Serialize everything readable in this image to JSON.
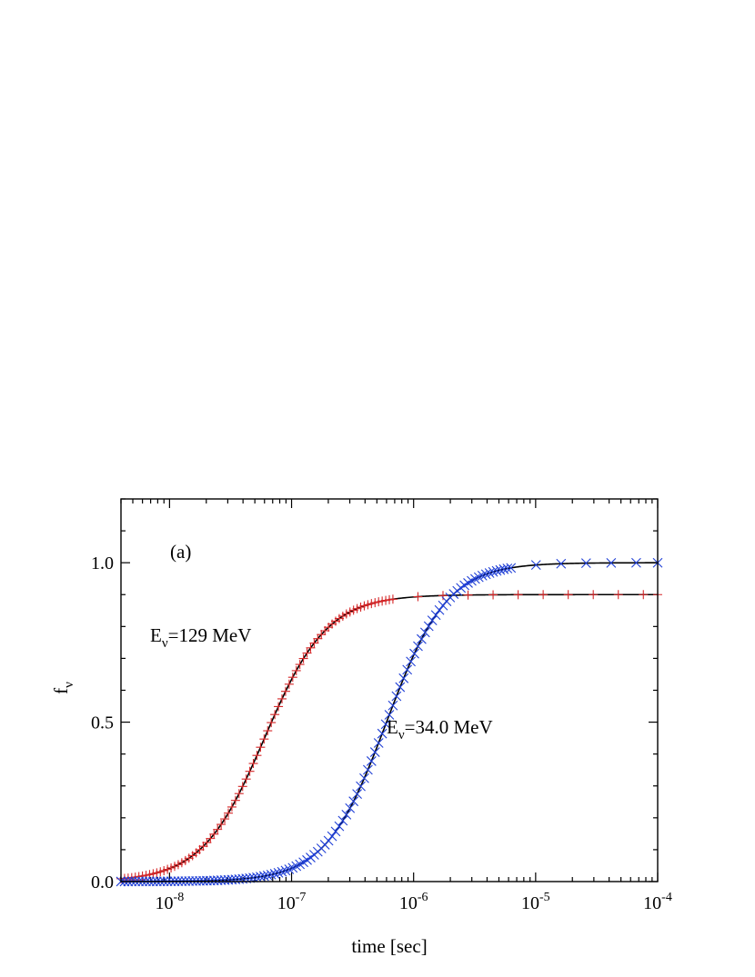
{
  "chart_data": {
    "type": "line",
    "panel_label": "(a)",
    "xlabel": "time [sec]",
    "ylabel": "f",
    "ylabel_sub": "ν",
    "x_scale": "log",
    "xlim": [
      4e-09,
      0.0001
    ],
    "ylim": [
      0.0,
      1.2
    ],
    "x_ticks": [
      {
        "value": 1e-08,
        "base": "10",
        "exp": "-8"
      },
      {
        "value": 1e-07,
        "base": "10",
        "exp": "-7"
      },
      {
        "value": 1e-06,
        "base": "10",
        "exp": "-6"
      },
      {
        "value": 1e-05,
        "base": "10",
        "exp": "-5"
      },
      {
        "value": 0.0001,
        "base": "10",
        "exp": "-4"
      }
    ],
    "y_ticks": [
      {
        "value": 0.0,
        "label": "0.0"
      },
      {
        "value": 0.5,
        "label": "0.5"
      },
      {
        "value": 1.0,
        "label": "1.0"
      }
    ],
    "series": [
      {
        "label_main": "E",
        "label_sub": "ν",
        "label_rest": "=129 MeV",
        "marker": "plus",
        "marker_color": "#d62728",
        "line_color": "#000000",
        "saturation": 0.9,
        "t_half": 6e-08,
        "steepness": 1.7,
        "points": [
          {
            "t": 4e-09,
            "f": 0.05
          },
          {
            "t": 1e-08,
            "f": 0.13
          },
          {
            "t": 2e-08,
            "f": 0.24
          },
          {
            "t": 4e-08,
            "f": 0.38
          },
          {
            "t": 6e-08,
            "f": 0.49
          },
          {
            "t": 1e-07,
            "f": 0.64
          },
          {
            "t": 2e-07,
            "f": 0.83
          },
          {
            "t": 4e-07,
            "f": 0.9
          },
          {
            "t": 0.0001,
            "f": 0.9
          }
        ]
      },
      {
        "label_main": "E",
        "label_sub": "ν",
        "label_rest": "=34.0 MeV",
        "marker": "cross",
        "marker_color": "#1f3fd6",
        "line_color": "#000000",
        "saturation": 1.0,
        "t_half": 6e-07,
        "steepness": 1.75,
        "points": [
          {
            "t": 4e-09,
            "f": 0.0
          },
          {
            "t": 2e-08,
            "f": 0.01
          },
          {
            "t": 1e-07,
            "f": 0.1
          },
          {
            "t": 3e-07,
            "f": 0.3
          },
          {
            "t": 6e-07,
            "f": 0.53
          },
          {
            "t": 1e-06,
            "f": 0.72
          },
          {
            "t": 2e-06,
            "f": 0.92
          },
          {
            "t": 4e-06,
            "f": 1.0
          },
          {
            "t": 0.0001,
            "f": 1.0
          }
        ]
      }
    ]
  }
}
